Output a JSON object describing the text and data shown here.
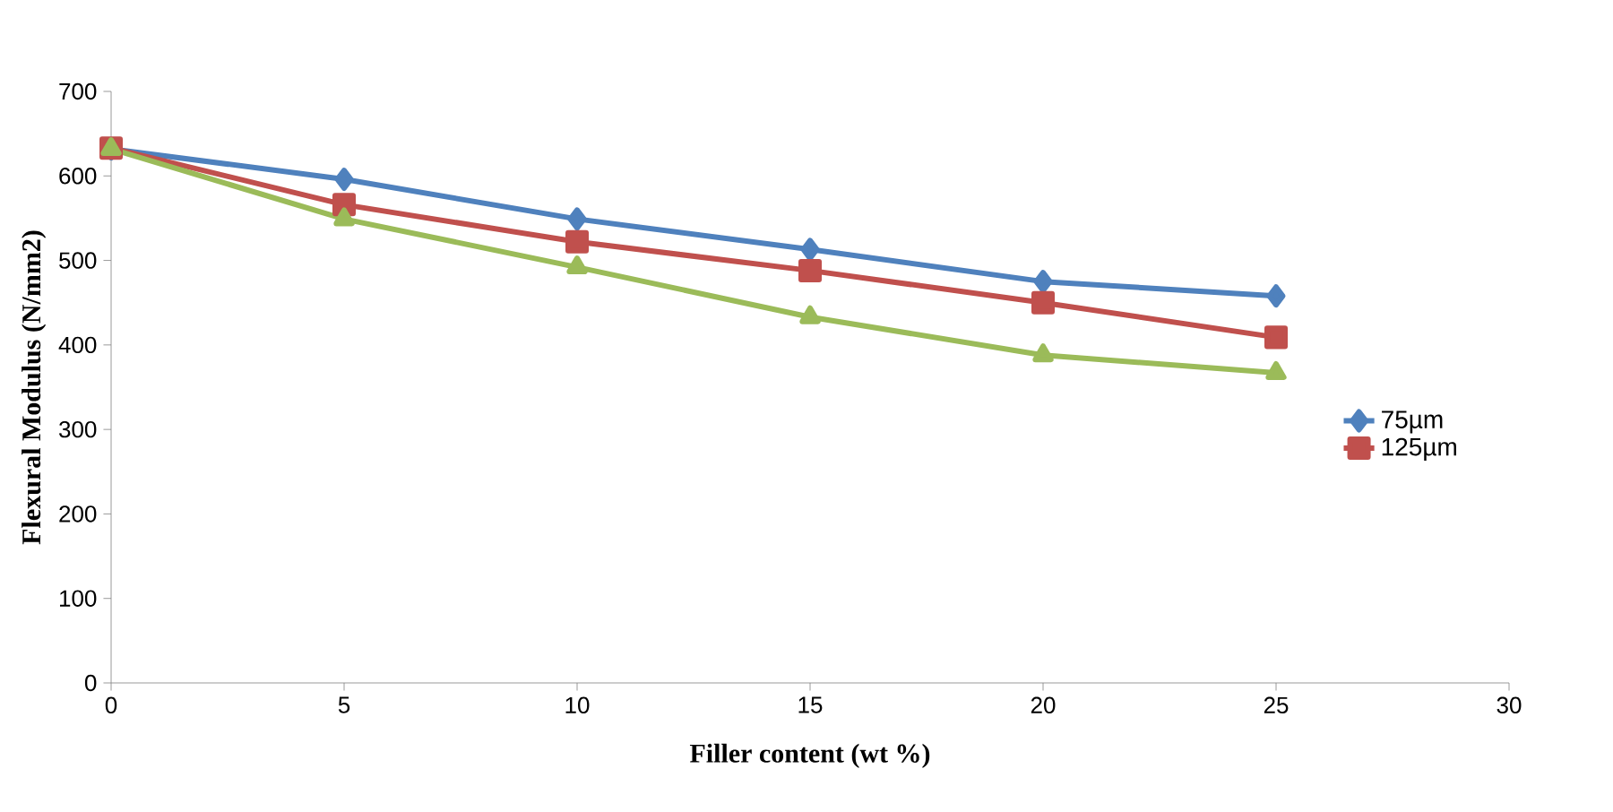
{
  "chart_data": {
    "type": "line",
    "xlabel": "Filler content (wt %)",
    "ylabel": "Flexural Modulus (N/mm2)",
    "x": [
      0,
      5,
      10,
      15,
      20,
      25
    ],
    "xlim": [
      0,
      30
    ],
    "xticks": [
      0,
      5,
      10,
      15,
      20,
      25,
      30
    ],
    "ylim": [
      0,
      700
    ],
    "yticks": [
      0,
      100,
      200,
      300,
      400,
      500,
      600,
      700
    ],
    "grid": false,
    "legend": "right",
    "series": [
      {
        "name": "75µm",
        "color": "#4f81bd",
        "marker": "diamond",
        "values": [
          632,
          596,
          549,
          513,
          475,
          458
        ]
      },
      {
        "name": "125µm",
        "color": "#c0504d",
        "marker": "square",
        "values": [
          633,
          566,
          522,
          488,
          450,
          409
        ]
      },
      {
        "color": "#9bbb59",
        "marker": "triangle",
        "values": [
          632,
          549,
          492,
          433,
          388,
          367
        ]
      }
    ]
  }
}
